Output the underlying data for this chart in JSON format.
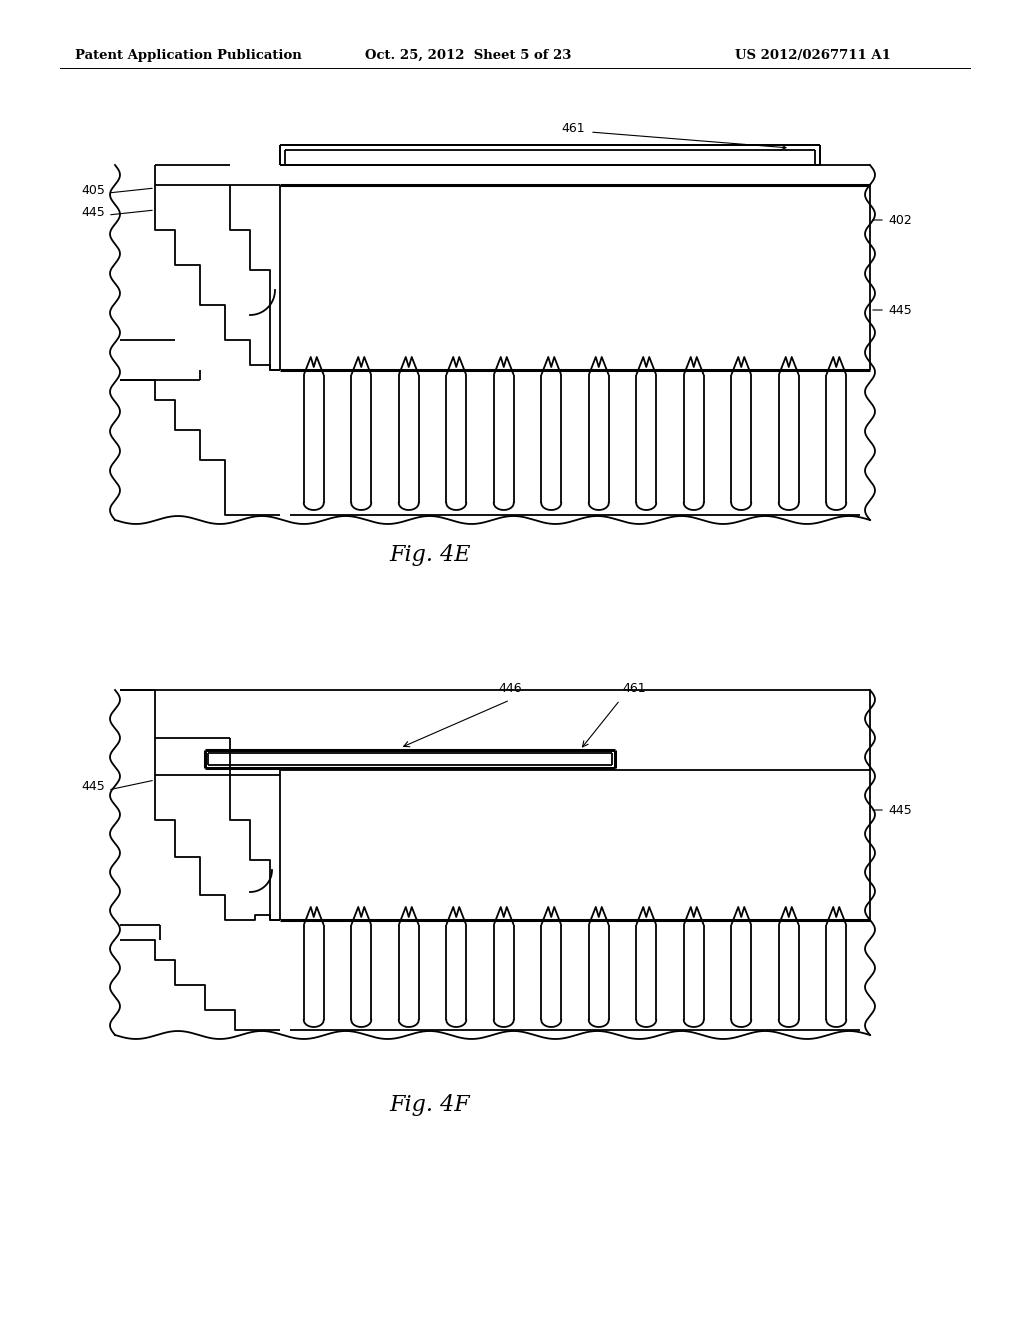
{
  "bg_color": "#ffffff",
  "line_color": "#000000",
  "fig_width": 10.24,
  "fig_height": 13.2,
  "header_left": "Patent Application Publication",
  "header_mid": "Oct. 25, 2012  Sheet 5 of 23",
  "header_right": "US 2012/0267711 A1"
}
